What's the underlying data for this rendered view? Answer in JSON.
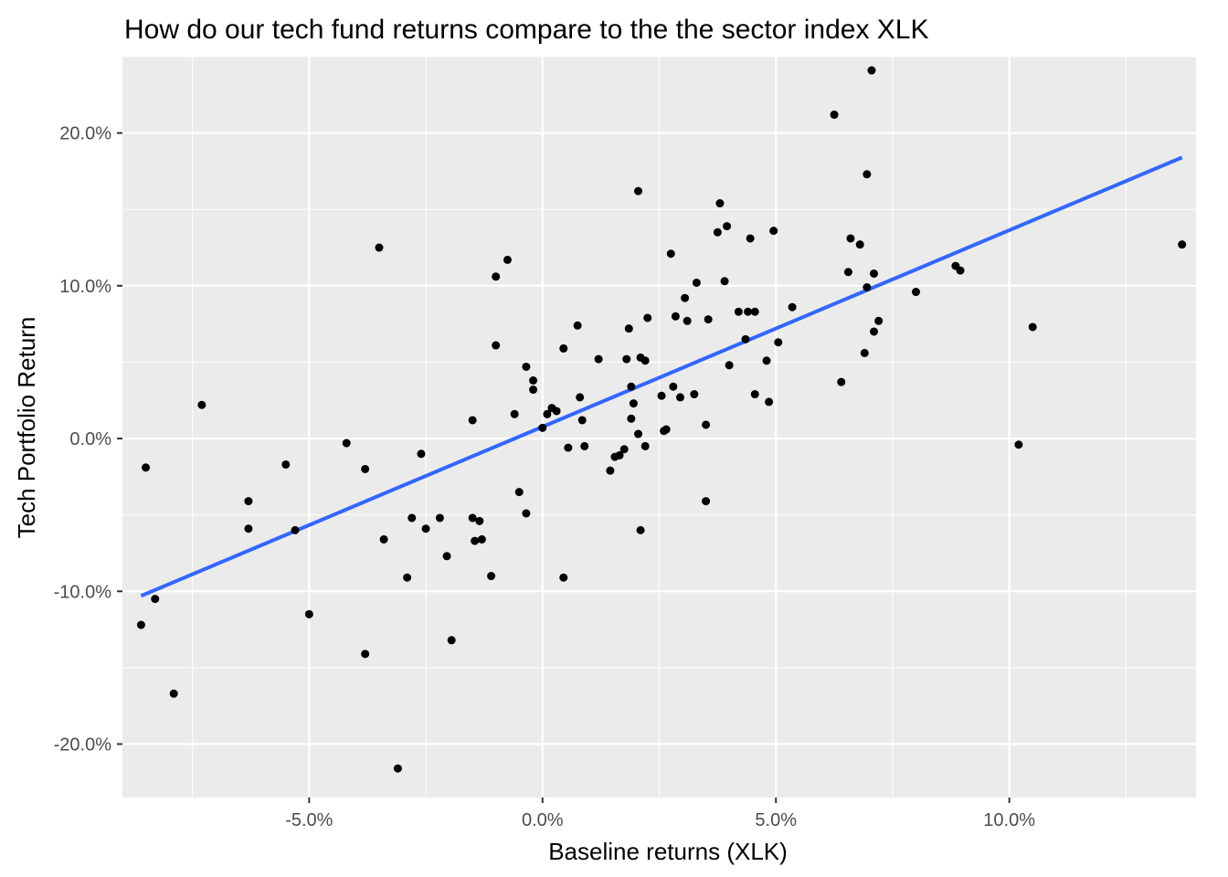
{
  "chart_data": {
    "type": "scatter",
    "title": "How do our tech fund returns compare to the the sector index XLK",
    "xlabel": "Baseline returns (XLK)",
    "ylabel": "Tech Portfolio Return",
    "xlim": [
      -9.0,
      14.0
    ],
    "ylim": [
      -23.5,
      25.0
    ],
    "x_ticks": [
      {
        "value": -5,
        "label": "-5.0%"
      },
      {
        "value": 0,
        "label": "0.0%"
      },
      {
        "value": 5,
        "label": "5.0%"
      },
      {
        "value": 10,
        "label": "10.0%"
      }
    ],
    "y_ticks": [
      {
        "value": -20,
        "label": "-20.0%"
      },
      {
        "value": -10,
        "label": "-10.0%"
      },
      {
        "value": 0,
        "label": "0.0%"
      },
      {
        "value": 10,
        "label": "10.0%"
      },
      {
        "value": 20,
        "label": "20.0%"
      }
    ],
    "grid": true,
    "colors": {
      "panel": "#ebebeb",
      "grid": "#ffffff",
      "points": "#000000",
      "trend": "#3366ff"
    },
    "trendline": {
      "x": [
        -8.6,
        13.7
      ],
      "y": [
        -10.3,
        18.4
      ]
    },
    "points": [
      [
        -8.6,
        -12.2
      ],
      [
        -8.5,
        -1.9
      ],
      [
        -8.3,
        -10.5
      ],
      [
        -7.9,
        -16.7
      ],
      [
        -7.3,
        2.2
      ],
      [
        -6.3,
        -4.1
      ],
      [
        -6.3,
        -5.9
      ],
      [
        -5.5,
        -1.7
      ],
      [
        -5.3,
        -6.0
      ],
      [
        -5.0,
        -11.5
      ],
      [
        -4.2,
        -0.3
      ],
      [
        -3.8,
        -2.0
      ],
      [
        -3.8,
        -14.1
      ],
      [
        -3.5,
        12.5
      ],
      [
        -3.4,
        -6.6
      ],
      [
        -3.1,
        -21.6
      ],
      [
        -2.9,
        -9.1
      ],
      [
        -2.8,
        -5.2
      ],
      [
        -2.6,
        -1.0
      ],
      [
        -2.5,
        -5.9
      ],
      [
        -2.2,
        -5.2
      ],
      [
        -2.05,
        -7.7
      ],
      [
        -1.95,
        -13.2
      ],
      [
        -1.5,
        1.2
      ],
      [
        -1.5,
        -5.2
      ],
      [
        -1.45,
        -6.7
      ],
      [
        -1.35,
        -5.4
      ],
      [
        -1.3,
        -6.6
      ],
      [
        -1.1,
        -9.0
      ],
      [
        -1.0,
        10.6
      ],
      [
        -1.0,
        6.1
      ],
      [
        -0.75,
        11.7
      ],
      [
        -0.6,
        1.6
      ],
      [
        -0.5,
        -3.5
      ],
      [
        -0.35,
        4.7
      ],
      [
        -0.35,
        -4.9
      ],
      [
        -0.2,
        3.8
      ],
      [
        -0.2,
        3.2
      ],
      [
        0.0,
        0.7
      ],
      [
        0.1,
        1.6
      ],
      [
        0.2,
        2.0
      ],
      [
        0.3,
        1.8
      ],
      [
        0.45,
        5.9
      ],
      [
        0.45,
        -9.1
      ],
      [
        0.55,
        -0.6
      ],
      [
        0.75,
        7.4
      ],
      [
        0.8,
        2.7
      ],
      [
        0.85,
        1.2
      ],
      [
        0.9,
        -0.5
      ],
      [
        1.2,
        5.2
      ],
      [
        1.45,
        -2.1
      ],
      [
        1.55,
        -1.2
      ],
      [
        1.65,
        -1.1
      ],
      [
        1.75,
        -0.7
      ],
      [
        1.8,
        5.2
      ],
      [
        1.85,
        7.2
      ],
      [
        1.9,
        3.4
      ],
      [
        1.9,
        1.3
      ],
      [
        1.95,
        2.3
      ],
      [
        2.05,
        16.2
      ],
      [
        2.05,
        0.3
      ],
      [
        2.1,
        5.3
      ],
      [
        2.1,
        -6.0
      ],
      [
        2.2,
        5.1
      ],
      [
        2.2,
        -0.5
      ],
      [
        2.25,
        7.9
      ],
      [
        2.55,
        2.8
      ],
      [
        2.6,
        0.5
      ],
      [
        2.65,
        0.6
      ],
      [
        2.75,
        12.1
      ],
      [
        2.8,
        3.4
      ],
      [
        2.85,
        8.0
      ],
      [
        2.95,
        2.7
      ],
      [
        3.05,
        9.2
      ],
      [
        3.1,
        7.7
      ],
      [
        3.25,
        2.9
      ],
      [
        3.3,
        10.2
      ],
      [
        3.5,
        0.9
      ],
      [
        3.5,
        -4.1
      ],
      [
        3.55,
        7.8
      ],
      [
        3.75,
        13.5
      ],
      [
        3.8,
        15.4
      ],
      [
        3.9,
        10.3
      ],
      [
        3.95,
        13.9
      ],
      [
        4.0,
        4.8
      ],
      [
        4.2,
        8.3
      ],
      [
        4.35,
        6.5
      ],
      [
        4.4,
        8.3
      ],
      [
        4.45,
        13.1
      ],
      [
        4.55,
        8.3
      ],
      [
        4.55,
        2.9
      ],
      [
        4.8,
        5.1
      ],
      [
        4.85,
        2.4
      ],
      [
        4.95,
        13.6
      ],
      [
        5.05,
        6.3
      ],
      [
        5.35,
        8.6
      ],
      [
        6.25,
        21.2
      ],
      [
        6.4,
        3.7
      ],
      [
        6.55,
        10.9
      ],
      [
        6.6,
        13.1
      ],
      [
        6.8,
        12.7
      ],
      [
        6.9,
        5.6
      ],
      [
        6.95,
        17.3
      ],
      [
        6.95,
        9.9
      ],
      [
        7.05,
        24.1
      ],
      [
        7.1,
        7.0
      ],
      [
        7.1,
        10.8
      ],
      [
        7.2,
        7.7
      ],
      [
        8.0,
        9.6
      ],
      [
        8.85,
        11.3
      ],
      [
        8.95,
        11.0
      ],
      [
        10.2,
        -0.4
      ],
      [
        10.5,
        7.3
      ],
      [
        13.7,
        12.7
      ]
    ]
  }
}
